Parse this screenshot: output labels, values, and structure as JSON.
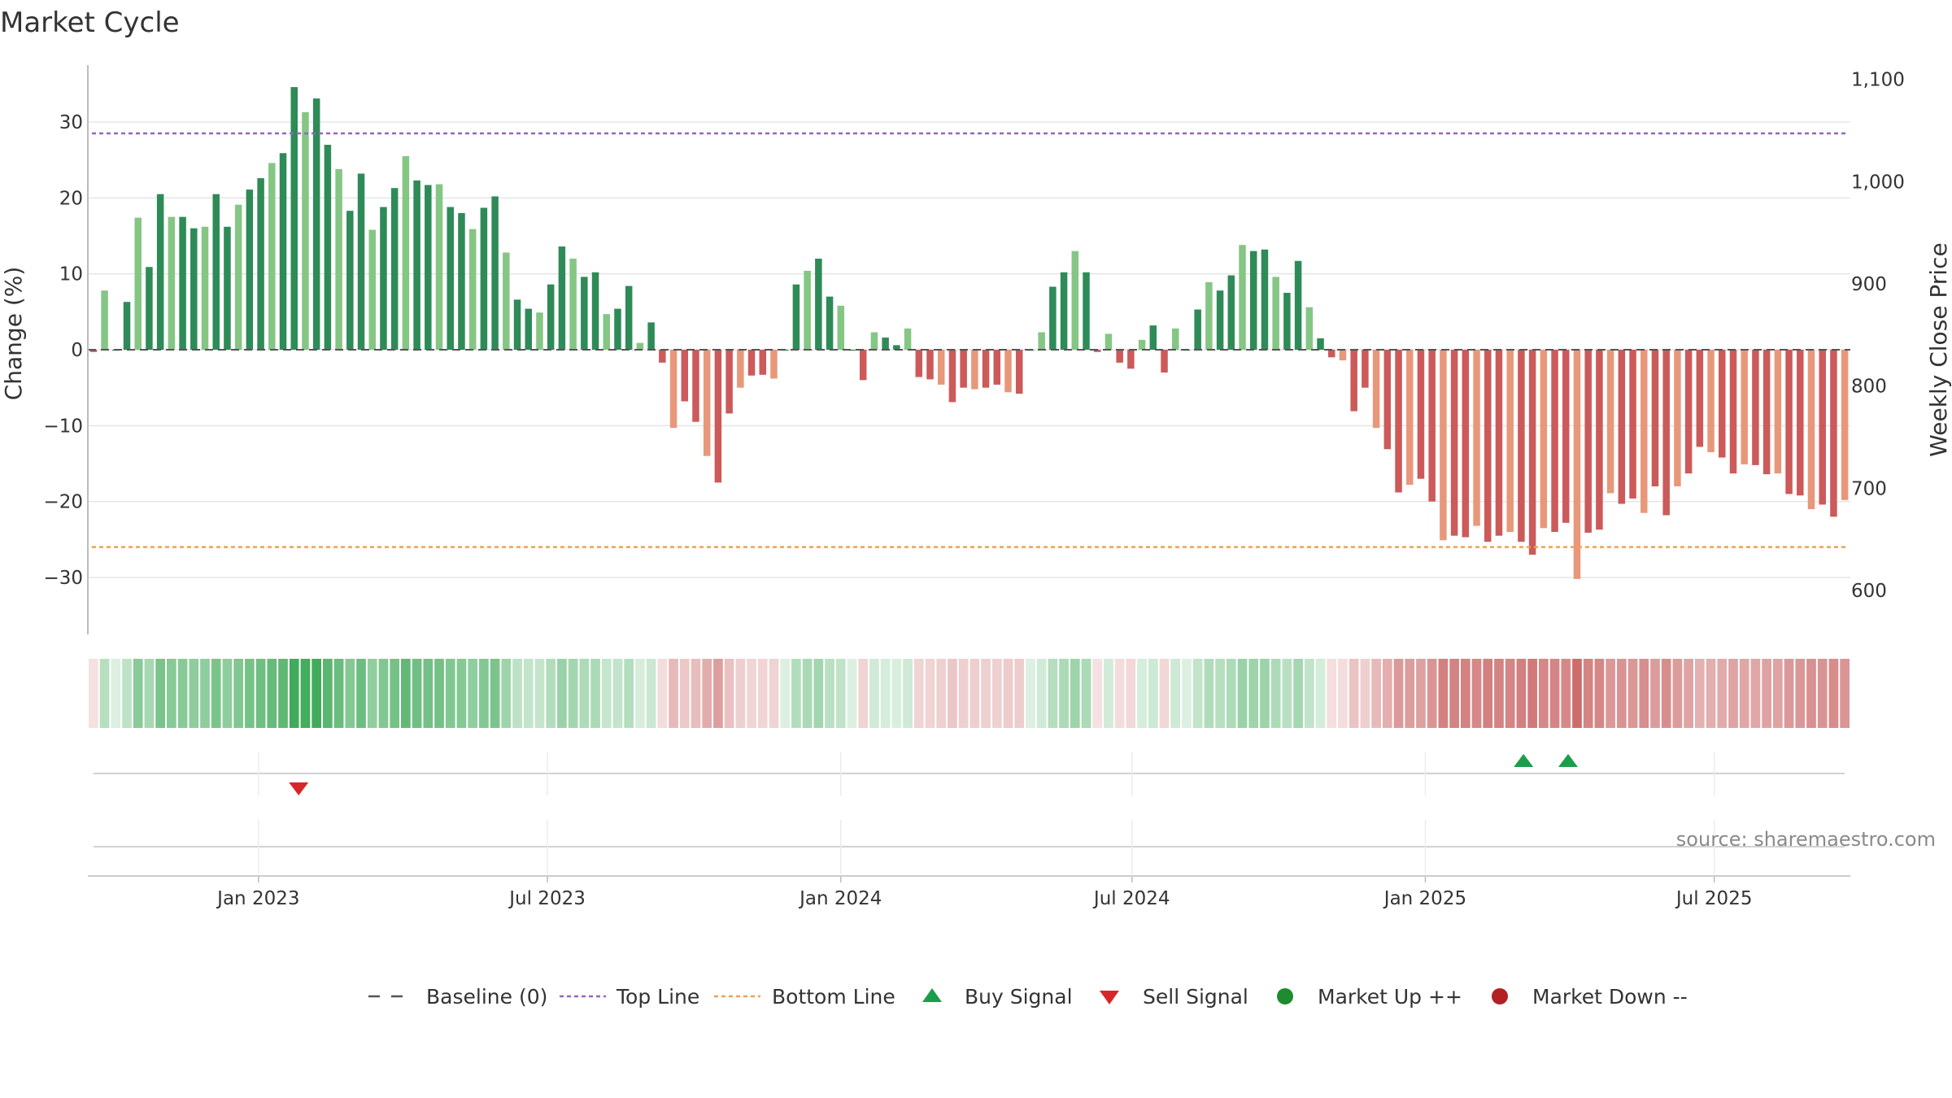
{
  "chart_data": {
    "type": "bar",
    "title": "Market Cycle",
    "ylabel": "Change (%)",
    "y2label": "Weekly Close Price",
    "ylim": [
      -37.5,
      37.5
    ],
    "y_ticks": [
      30,
      20,
      10,
      0,
      -10,
      -20,
      -30
    ],
    "y_tick_labels": [
      "30",
      "20",
      "10",
      "0",
      "−10",
      "−20",
      "−30"
    ],
    "y2lim": [
      557,
      1114
    ],
    "y2_ticks": [
      1100,
      1000,
      900,
      800,
      700,
      600
    ],
    "y2_tick_labels": [
      "1,100",
      "1,000",
      "900",
      "800",
      "700",
      "600"
    ],
    "x_tick_labels": [
      "Jan 2023",
      "Jul 2023",
      "Jan 2024",
      "Jul 2024",
      "Jan 2025",
      "Jul 2025"
    ],
    "x_tick_weeks": [
      14.8,
      40.7,
      67.0,
      93.1,
      119.4,
      145.3
    ],
    "top_line": 28.5,
    "bottom_line": -26,
    "colors": {
      "strong_up": "#2e8b57",
      "weak_up": "#85c685",
      "strong_down": "#cc5a5a",
      "weak_down": "#e8987a",
      "top_line": "#9467bd",
      "bottom_line": "#f0a050",
      "baseline": "#555555",
      "buy": "#1a9e4a",
      "sell": "#d62728",
      "market_up": "#1e8c2e",
      "market_down": "#b22222",
      "grid": "#e5e5e5"
    },
    "series": [
      {
        "values": [
          -0.3,
          7.8,
          0.0,
          6.3,
          17.4,
          10.9,
          20.5,
          17.5,
          17.5,
          16.0,
          16.2,
          20.5,
          16.2,
          19.1,
          21.1,
          22.6,
          24.6,
          25.9,
          34.6,
          31.3,
          33.1,
          27.0,
          23.8,
          18.3,
          23.2,
          15.8,
          18.8,
          21.3,
          25.5,
          22.3,
          21.7,
          21.8,
          18.8,
          18.0,
          15.9,
          18.7,
          20.2,
          12.8,
          6.6,
          5.4,
          4.9,
          8.6,
          13.6,
          12.0,
          9.6,
          10.2,
          4.7,
          5.4,
          8.4,
          0.9,
          3.6,
          -1.7,
          -10.3,
          -6.8,
          -9.5,
          -14.0,
          -17.5,
          -8.4,
          -5.0,
          -3.4,
          -3.3,
          -3.8,
          0.0,
          8.6,
          10.4,
          12.0,
          7.0,
          5.8,
          0.0,
          -4.0,
          2.3,
          1.6,
          0.6,
          2.8,
          -3.6,
          -3.9,
          -4.6,
          -6.9,
          -5.0,
          -5.2,
          -5.0,
          -4.6,
          -5.6,
          -5.8,
          0.0,
          2.3,
          8.3,
          10.2,
          13.0,
          10.2,
          -0.3,
          2.1,
          -1.7,
          -2.5,
          1.3,
          3.2,
          -3.0,
          2.8,
          0.0,
          5.3,
          8.9,
          7.8,
          9.8,
          13.8,
          13.0,
          13.2,
          9.6,
          7.5,
          11.7,
          5.6,
          1.5,
          -1.0,
          -1.4,
          -8.1,
          -5.0,
          -10.3,
          -13.1,
          -18.8,
          -17.8,
          -17.0,
          -20.0,
          -25.1,
          -24.5,
          -24.7,
          -23.2,
          -25.3,
          -24.5,
          -24.0,
          -25.3,
          -27.0,
          -23.5,
          -24.0,
          -22.8,
          -30.2,
          -24.1,
          -23.7,
          -18.9,
          -20.3,
          -19.6,
          -21.5,
          -18.0,
          -21.8,
          -18.0,
          -16.3,
          -12.8,
          -13.5,
          -14.2,
          -16.3,
          -15.1,
          -15.2,
          -16.4,
          -16.3,
          -19.0,
          -19.2,
          -21.0,
          -20.4,
          -22.0,
          -19.8
        ]
      }
    ],
    "buy_signal_weeks": [
      128.2,
      132.2
    ],
    "sell_signal_weeks": [
      18.4
    ],
    "source": "source: sharemaestro.com",
    "legend": [
      "Baseline (0)",
      "Top Line",
      "Bottom Line",
      "Buy Signal",
      "Sell Signal",
      "Market Up ++",
      "Market Down --"
    ]
  }
}
